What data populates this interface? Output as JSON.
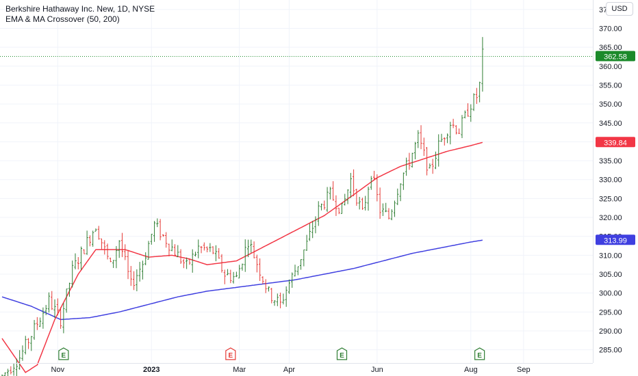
{
  "header": {
    "symbol_line": "Berkshire Hathaway Inc. New, 1D, NYSE",
    "indicator_line": "EMA & MA Crossover (50, 200)",
    "currency": "USD"
  },
  "colors": {
    "up": "#2e7d32",
    "down": "#e53935",
    "ema": "#f23645",
    "ma": "#3f3fe0",
    "last_price": "#1b8a2a",
    "grid": "#f0f3fa",
    "axis_text": "#131722"
  },
  "chart_data": {
    "type": "ohlc",
    "y_ticks": [
      "285.00",
      "290.00",
      "295.00",
      "300.00",
      "305.00",
      "310.00",
      "315.00",
      "320.00",
      "325.00",
      "330.00",
      "335.00",
      "340.00",
      "345.00",
      "350.00",
      "355.00",
      "360.00",
      "365.00",
      "370.00",
      "375.00"
    ],
    "x_ticks": [
      "Nov",
      "2023",
      "Mar",
      "Apr",
      "Jun",
      "Aug",
      "Sep"
    ],
    "ylim": [
      281.5,
      377.5
    ],
    "last_price": 362.58,
    "last_price_label": "362.58",
    "ema_value_label": "339.84",
    "ma_value_label": "313.99",
    "earnings_markers": [
      "E",
      "E",
      "E",
      "E"
    ],
    "price_keypoints": [
      [
        0,
        278
      ],
      [
        6,
        283
      ],
      [
        12,
        292
      ],
      [
        16,
        298
      ],
      [
        20,
        293
      ],
      [
        24,
        306
      ],
      [
        28,
        312
      ],
      [
        32,
        318
      ],
      [
        37,
        307
      ],
      [
        40,
        314
      ],
      [
        44,
        302
      ],
      [
        48,
        308
      ],
      [
        52,
        318
      ],
      [
        56,
        314
      ],
      [
        60,
        310
      ],
      [
        63,
        307
      ],
      [
        67,
        312
      ],
      [
        72,
        311
      ],
      [
        76,
        305
      ],
      [
        80,
        304
      ],
      [
        84,
        314
      ],
      [
        88,
        306
      ],
      [
        91,
        300
      ],
      [
        95,
        297
      ],
      [
        97,
        301
      ],
      [
        100,
        306
      ],
      [
        104,
        313
      ],
      [
        108,
        322
      ],
      [
        112,
        326
      ],
      [
        116,
        322
      ],
      [
        119,
        330
      ],
      [
        123,
        321
      ],
      [
        126,
        332
      ],
      [
        129,
        322
      ],
      [
        132,
        320
      ],
      [
        136,
        330
      ],
      [
        139,
        335
      ],
      [
        142,
        341
      ],
      [
        146,
        332
      ],
      [
        149,
        339
      ],
      [
        153,
        345
      ],
      [
        156,
        343
      ],
      [
        160,
        350
      ],
      [
        162,
        352
      ],
      [
        163,
        355
      ],
      [
        164,
        363
      ]
    ],
    "ema_keypoints": [
      [
        0,
        288
      ],
      [
        8,
        279
      ],
      [
        12,
        281
      ],
      [
        18,
        293
      ],
      [
        26,
        305
      ],
      [
        32,
        311.5
      ],
      [
        42,
        311.5
      ],
      [
        50,
        309.5
      ],
      [
        58,
        310
      ],
      [
        64,
        309
      ],
      [
        70,
        307.5
      ],
      [
        80,
        308.5
      ],
      [
        90,
        312.5
      ],
      [
        100,
        316.5
      ],
      [
        110,
        320.5
      ],
      [
        120,
        326
      ],
      [
        128,
        330.5
      ],
      [
        136,
        333.5
      ],
      [
        144,
        335.5
      ],
      [
        152,
        337.5
      ],
      [
        160,
        339
      ],
      [
        164,
        339.84
      ]
    ],
    "ma_keypoints": [
      [
        0,
        299
      ],
      [
        10,
        296.5
      ],
      [
        20,
        293
      ],
      [
        30,
        293.5
      ],
      [
        40,
        295
      ],
      [
        50,
        297
      ],
      [
        60,
        299
      ],
      [
        70,
        300.5
      ],
      [
        80,
        301.5
      ],
      [
        90,
        302.5
      ],
      [
        100,
        303.5
      ],
      [
        110,
        305
      ],
      [
        120,
        306.5
      ],
      [
        130,
        308.5
      ],
      [
        140,
        310.5
      ],
      [
        150,
        312
      ],
      [
        160,
        313.5
      ],
      [
        164,
        313.99
      ]
    ]
  }
}
